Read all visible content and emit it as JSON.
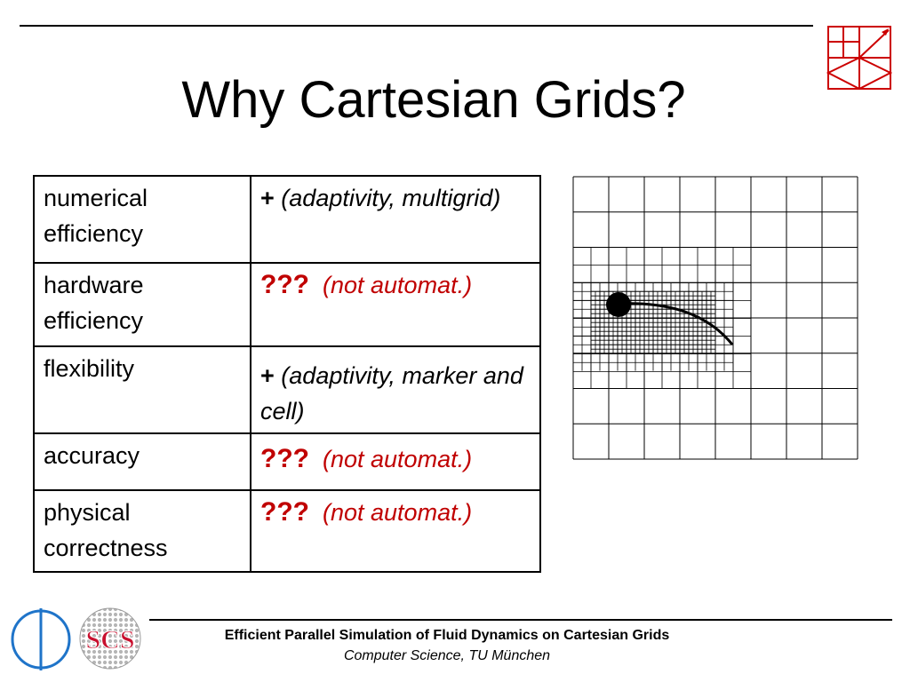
{
  "slide": {
    "title": "Why Cartesian Grids?",
    "rows": [
      {
        "label": "numerical efficiency",
        "symbol": "+",
        "symbol_type": "plus",
        "note": "(adaptivity, multigrid)"
      },
      {
        "label": "hardware efficiency",
        "symbol": "???",
        "symbol_type": "question",
        "note": "(not automat.)"
      },
      {
        "label": "flexibility",
        "symbol": "+",
        "symbol_type": "plus",
        "note": "(adaptivity, marker and cell)"
      },
      {
        "label": "accuracy",
        "symbol": "???",
        "symbol_type": "question",
        "note": "(not automat.)"
      },
      {
        "label": "physical correctness",
        "symbol": "???",
        "symbol_type": "question",
        "note": "(not automat.)"
      }
    ],
    "logo_scs_text": "SCS"
  },
  "footer": {
    "title": "Efficient Parallel Simulation of Fluid Dynamics on Cartesian Grids",
    "subtitle": "Computer Science, TU München"
  },
  "colors": {
    "accent_red": "#c00000",
    "logo_blue": "#1f74c9",
    "logo_scs_red": "#c8102e"
  },
  "icons": [
    "tum-grid-logo-icon",
    "tum-circle-logo-icon",
    "scs-logo-icon",
    "adaptive-grid-figure"
  ]
}
